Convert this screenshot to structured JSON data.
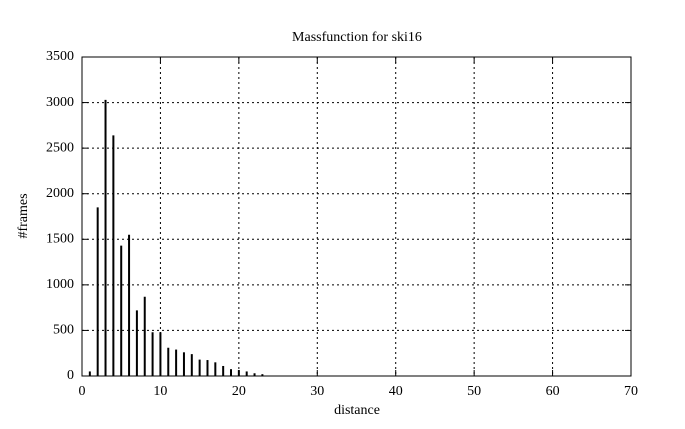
{
  "chart_data": {
    "type": "impulse",
    "title": "Massfunction for ski16",
    "xlabel": "distance",
    "ylabel": "#frames",
    "x": [
      1,
      2,
      3,
      4,
      5,
      6,
      7,
      8,
      9,
      10,
      11,
      12,
      13,
      14,
      15,
      16,
      17,
      18,
      19,
      20,
      21,
      22,
      23
    ],
    "values": [
      50,
      1850,
      3030,
      2640,
      1430,
      1550,
      720,
      870,
      480,
      480,
      310,
      290,
      260,
      240,
      180,
      175,
      150,
      110,
      75,
      65,
      50,
      30,
      20
    ],
    "color": "#000000",
    "xlim": [
      0,
      70
    ],
    "xticks": [
      0,
      10,
      20,
      30,
      40,
      50,
      60,
      70
    ],
    "ylim": [
      0,
      3500
    ],
    "yticks": [
      0,
      500,
      1000,
      1500,
      2000,
      2500,
      3000,
      3500
    ],
    "grid": true
  }
}
